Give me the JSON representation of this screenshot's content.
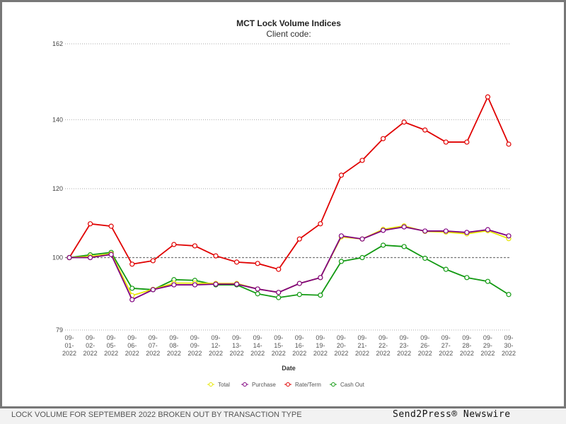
{
  "chart_data": {
    "type": "line",
    "title": "MCT Lock Volume Indices",
    "subtitle": "Client code:",
    "xlabel": "Date",
    "ylabel": "",
    "ylim": [
      79,
      162
    ],
    "yticks": [
      79,
      100,
      120,
      140,
      162
    ],
    "grid": true,
    "legend_position": "bottom",
    "categories": [
      "09-01-2022",
      "09-02-2022",
      "09-05-2022",
      "09-06-2022",
      "09-07-2022",
      "09-08-2022",
      "09-09-2022",
      "09-12-2022",
      "09-13-2022",
      "09-14-2022",
      "09-15-2022",
      "09-16-2022",
      "09-19-2022",
      "09-20-2022",
      "09-21-2022",
      "09-22-2022",
      "09-23-2022",
      "09-26-2022",
      "09-27-2022",
      "09-28-2022",
      "09-29-2022",
      "09-30-2022"
    ],
    "series": [
      {
        "name": "Total",
        "color": "#e6e600",
        "values": [
          100,
          100.3,
          101.1,
          89.0,
          90.8,
          92.6,
          92.6,
          92.5,
          92.5,
          90.9,
          89.9,
          92.5,
          94.2,
          106.0,
          105.4,
          108.2,
          109.2,
          107.6,
          107.4,
          106.9,
          107.8,
          105.5
        ]
      },
      {
        "name": "Purchase",
        "color": "#800080",
        "values": [
          100,
          100.0,
          100.9,
          87.8,
          90.7,
          92.1,
          92.1,
          92.3,
          92.3,
          90.9,
          89.9,
          92.5,
          94.2,
          106.3,
          105.4,
          107.9,
          108.9,
          107.7,
          107.7,
          107.3,
          108.1,
          106.3
        ]
      },
      {
        "name": "Rate/Term",
        "color": "#e00000",
        "values": [
          100,
          109.8,
          109.1,
          98.1,
          99.1,
          103.8,
          103.4,
          100.5,
          98.7,
          98.3,
          96.6,
          105.4,
          109.8,
          123.9,
          128.2,
          134.5,
          139.3,
          137.0,
          133.5,
          133.5,
          146.6,
          132.9
        ]
      },
      {
        "name": "Cash Out",
        "color": "#119911",
        "values": [
          100,
          100.8,
          101.5,
          91.1,
          90.7,
          93.6,
          93.4,
          92.1,
          92.1,
          89.5,
          88.4,
          89.3,
          89.1,
          98.9,
          100.0,
          103.6,
          103.2,
          99.8,
          96.6,
          94.2,
          93.1,
          89.3
        ]
      }
    ]
  },
  "footer": {
    "caption": "LOCK VOLUME FOR SEPTEMBER 2022 BROKEN OUT BY TRANSACTION TYPE",
    "brand": "Send2Press® Newswire"
  }
}
